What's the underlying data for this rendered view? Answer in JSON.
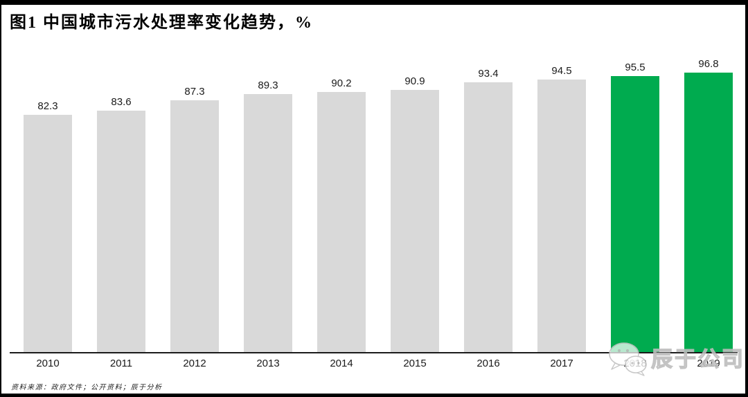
{
  "header": {
    "title": "图1 中国城市污水处理率变化趋势，%"
  },
  "chart_data": {
    "type": "bar",
    "categories": [
      "2010",
      "2011",
      "2012",
      "2013",
      "2014",
      "2015",
      "2016",
      "2017",
      "2018",
      "2019"
    ],
    "values": [
      82.3,
      83.6,
      87.3,
      89.3,
      90.2,
      90.9,
      93.4,
      94.5,
      95.5,
      96.8
    ],
    "value_labels": [
      "82.3",
      "83.6",
      "87.3",
      "89.3",
      "90.2",
      "90.9",
      "93.4",
      "94.5",
      "95.5",
      "96.8"
    ],
    "title": "图1 中国城市污水处理率变化趋势，%",
    "xlabel": "",
    "ylabel": "",
    "ylim": [
      0,
      100
    ],
    "grid": false,
    "legend": "none",
    "bar_color_default": "#D9D9D9",
    "bar_color_highlight": "#00AB4F",
    "highlight_indices": [
      8,
      9
    ],
    "label_color": "#1a1a1a"
  },
  "footer": {
    "source": "资料来源：政府文件；公开资料；辰于分析"
  },
  "watermark": {
    "text": "辰于公司",
    "icon": "wechat-bubbles-icon"
  }
}
